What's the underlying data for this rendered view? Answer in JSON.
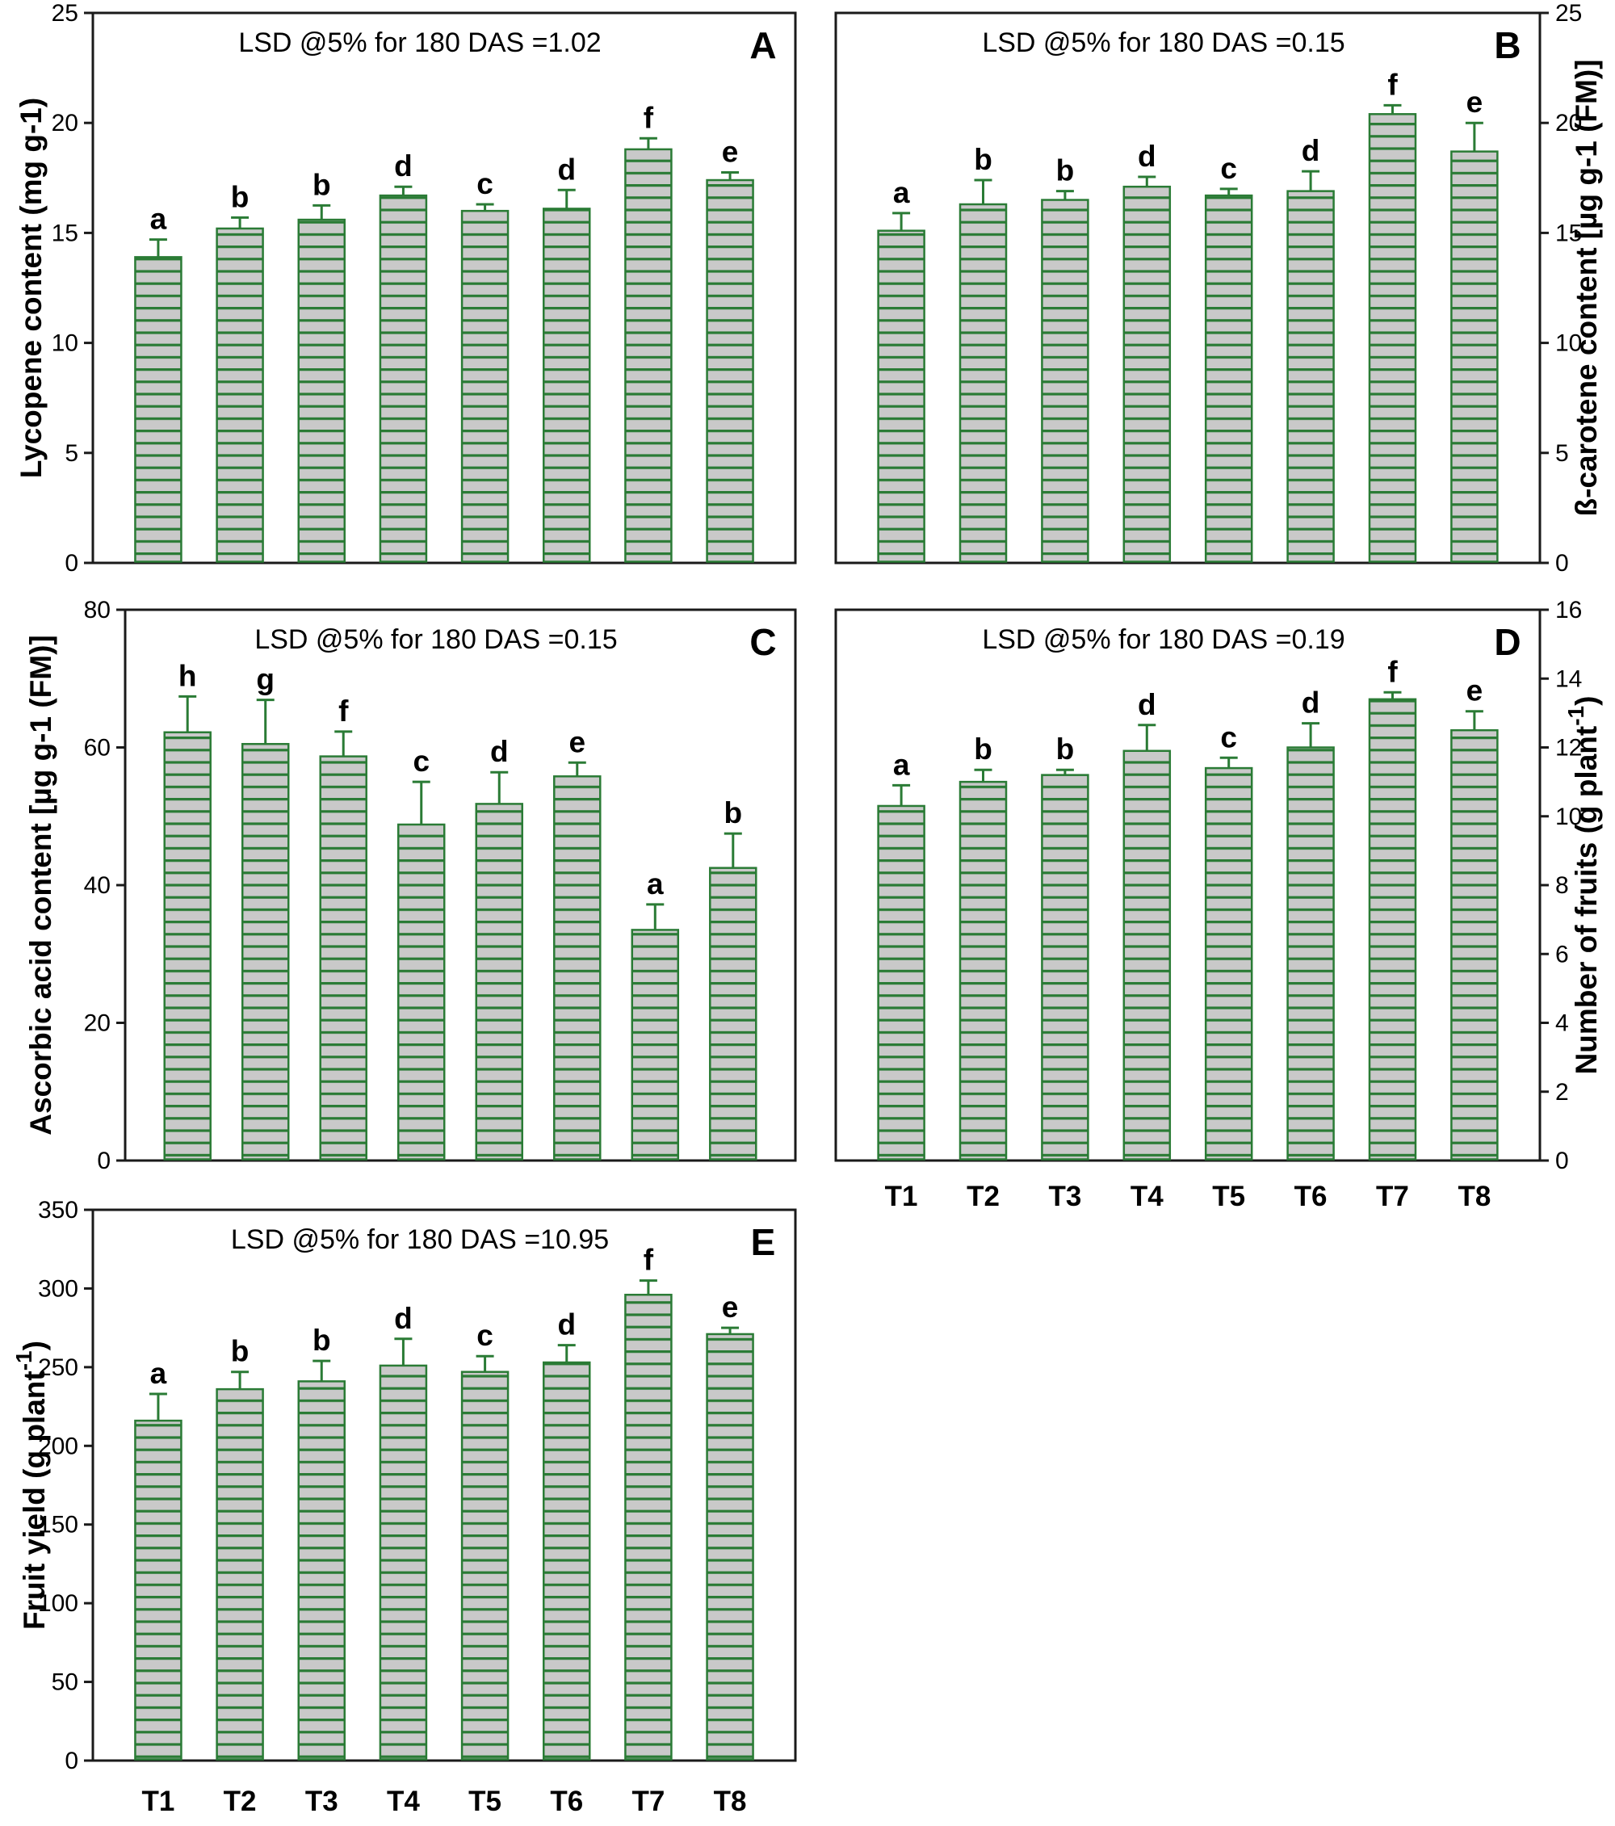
{
  "figure": {
    "background": "#ffffff",
    "bar_fill": "#c9c9c9",
    "bar_stripe": "#2a7b35",
    "bar_border": "#2a7b35",
    "error_color": "#2a7b35",
    "axis_color": "#1a1a1a",
    "text_color": "#000000"
  },
  "chart_data": [
    {
      "panel_label": "A",
      "type": "bar",
      "title": "LSD @5% for 180 DAS =1.02",
      "ylabel_parts": [
        {
          "t": "Lycopene content (mg g-1)"
        }
      ],
      "ylabel_side": "left",
      "ylim": [
        0,
        25
      ],
      "yticks": [
        0,
        5,
        10,
        15,
        20,
        25
      ],
      "categories": [
        "T1",
        "T2",
        "T3",
        "T4",
        "T5",
        "T6",
        "T7",
        "T8"
      ],
      "values": [
        13.9,
        15.2,
        15.6,
        16.7,
        16.0,
        16.1,
        18.8,
        17.4
      ],
      "errors": [
        0.8,
        0.5,
        0.65,
        0.4,
        0.3,
        0.85,
        0.5,
        0.35
      ],
      "letters": [
        "a",
        "b",
        "b",
        "d",
        "c",
        "d",
        "f",
        "e"
      ],
      "show_x_labels": false,
      "legend": "none",
      "grid": "off"
    },
    {
      "panel_label": "B",
      "type": "bar",
      "title": "LSD @5% for 180 DAS =0.15",
      "ylabel_parts": [
        {
          "t": "ß-carotene content [µg g-1 (FM)]"
        }
      ],
      "ylabel_side": "right",
      "ylim": [
        0,
        25
      ],
      "yticks": [
        0,
        5,
        10,
        15,
        20,
        25
      ],
      "categories": [
        "T1",
        "T2",
        "T3",
        "T4",
        "T5",
        "T6",
        "T7",
        "T8"
      ],
      "values": [
        15.1,
        16.3,
        16.5,
        17.1,
        16.7,
        16.9,
        20.4,
        18.7
      ],
      "errors": [
        0.8,
        1.1,
        0.4,
        0.45,
        0.3,
        0.9,
        0.4,
        1.3
      ],
      "letters": [
        "a",
        "b",
        "b",
        "d",
        "c",
        "d",
        "f",
        "e"
      ],
      "show_x_labels": false,
      "legend": "none",
      "grid": "off"
    },
    {
      "panel_label": "C",
      "type": "bar",
      "title": "LSD @5% for 180 DAS =0.15",
      "ylabel_parts": [
        {
          "t": "Ascorbic acid content [µg g-1 (FM)]"
        }
      ],
      "ylabel_side": "left",
      "ylim": [
        0,
        80
      ],
      "yticks": [
        0,
        20,
        40,
        60,
        80
      ],
      "categories": [
        "T1",
        "T2",
        "T3",
        "T4",
        "T5",
        "T6",
        "T7",
        "T8"
      ],
      "values": [
        62.2,
        60.5,
        58.7,
        48.8,
        51.8,
        55.8,
        33.5,
        42.5
      ],
      "errors": [
        5.2,
        6.4,
        3.6,
        6.2,
        4.6,
        2.0,
        3.7,
        5.0
      ],
      "letters": [
        "h",
        "g",
        "f",
        "c",
        "d",
        "e",
        "a",
        "b"
      ],
      "show_x_labels": false,
      "legend": "none",
      "grid": "off"
    },
    {
      "panel_label": "D",
      "type": "bar",
      "title": "LSD @5% for 180 DAS =0.19",
      "ylabel_parts": [
        {
          "t": "Number of fruits (g plant"
        },
        {
          "t": "-1",
          "sup": true
        },
        {
          "t": ")"
        }
      ],
      "ylabel_side": "right",
      "ylim": [
        0,
        16
      ],
      "yticks": [
        0,
        2,
        4,
        6,
        8,
        10,
        12,
        14,
        16
      ],
      "categories": [
        "T1",
        "T2",
        "T3",
        "T4",
        "T5",
        "T6",
        "T7",
        "T8"
      ],
      "values": [
        10.3,
        11.0,
        11.2,
        11.9,
        11.4,
        12.0,
        13.4,
        12.5
      ],
      "errors": [
        0.6,
        0.35,
        0.15,
        0.75,
        0.3,
        0.7,
        0.2,
        0.55
      ],
      "letters": [
        "a",
        "b",
        "b",
        "d",
        "c",
        "d",
        "f",
        "e"
      ],
      "show_x_labels": true,
      "legend": "none",
      "grid": "off"
    },
    {
      "panel_label": "E",
      "type": "bar",
      "title": "LSD @5% for 180 DAS =10.95",
      "ylabel_parts": [
        {
          "t": "Fruit yield (g plant"
        },
        {
          "t": "-1",
          "sup": true
        },
        {
          "t": ")"
        }
      ],
      "ylabel_side": "left",
      "ylim": [
        0,
        350
      ],
      "yticks": [
        0,
        50,
        100,
        150,
        200,
        250,
        300,
        350
      ],
      "categories": [
        "T1",
        "T2",
        "T3",
        "T4",
        "T5",
        "T6",
        "T7",
        "T8"
      ],
      "values": [
        216,
        236,
        241,
        251,
        247,
        253,
        296,
        271
      ],
      "errors": [
        17,
        11,
        13,
        17,
        10,
        11,
        9,
        4
      ],
      "letters": [
        "a",
        "b",
        "b",
        "d",
        "c",
        "d",
        "f",
        "e"
      ],
      "show_x_labels": true,
      "legend": "none",
      "grid": "off"
    }
  ]
}
